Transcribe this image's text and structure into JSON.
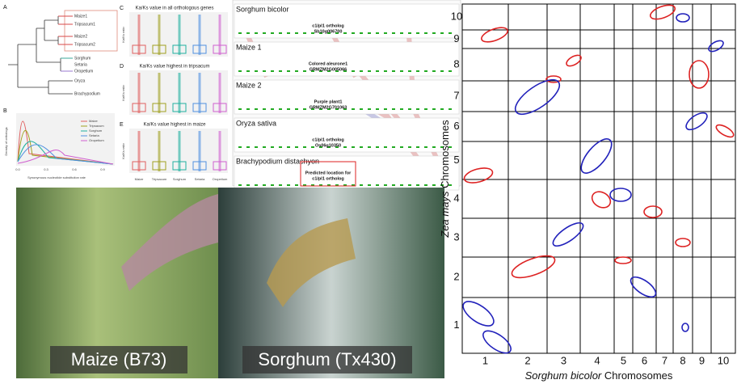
{
  "tree": {
    "panel": "A",
    "leaves": [
      "Maize1",
      "Tripsacum1",
      "Maize2",
      "Tripsacum2",
      "Sorghum",
      "Setaria",
      "Oropetium",
      "Oryza",
      "Brachypodium"
    ]
  },
  "density": {
    "panel": "B",
    "y_label": "Density of orthologs",
    "x_label": "Synonymous nucleotide substitution rate",
    "x_ticks": [
      "0.0",
      "0.3",
      "0.6",
      "0.9"
    ],
    "legend": [
      "Maize",
      "Tripsacum",
      "Sorghum",
      "Setaria",
      "Oropetium"
    ]
  },
  "boxplots": {
    "y_label": "Ka/Ks ratio",
    "categories": [
      "Maize",
      "Tripsacum",
      "Sorghum",
      "Setaria",
      "Oropetium"
    ],
    "panels": [
      {
        "panel": "C",
        "title": "Ka/Ks value in all orthologous genes"
      },
      {
        "panel": "D",
        "title": "Ka/Ks value highest in tripsacum"
      },
      {
        "panel": "E",
        "title": "Ka/Ks value highest in maize"
      }
    ]
  },
  "browser": {
    "tracks": [
      {
        "name": "Sorghum bicolor",
        "note": [
          "c1/pl1 ortholog",
          "Sb10g006700"
        ]
      },
      {
        "name": "Maize 1",
        "note": [
          "Colored aleurone1",
          "GRMZM2G005066"
        ]
      },
      {
        "name": "Maize 2",
        "note": [
          "Purple plant1",
          "GRMZM2G701063"
        ]
      },
      {
        "name": "Oryza sativa",
        "note": [
          "c1/pl1 ortholog",
          "Os06g10350"
        ]
      },
      {
        "name": "Brachypodium distachyon",
        "note": [
          "Predicted location for",
          "c1/pl1 ortholog"
        ]
      }
    ]
  },
  "photos": [
    {
      "label": "Maize (B73)"
    },
    {
      "label": "Sorghum (Tx430)"
    }
  ],
  "dotplot": {
    "x_species": "Sorghum bicolor",
    "x_label": "Chromosomes",
    "y_species": "Zea mays",
    "y_label": "Chromosomes",
    "x_chromosomes": [
      "1",
      "2",
      "3",
      "4",
      "5",
      "6",
      "7",
      "8",
      "9",
      "10"
    ],
    "y_chromosomes": [
      "1",
      "2",
      "3",
      "4",
      "5",
      "6",
      "7",
      "8",
      "9",
      "10"
    ]
  }
}
